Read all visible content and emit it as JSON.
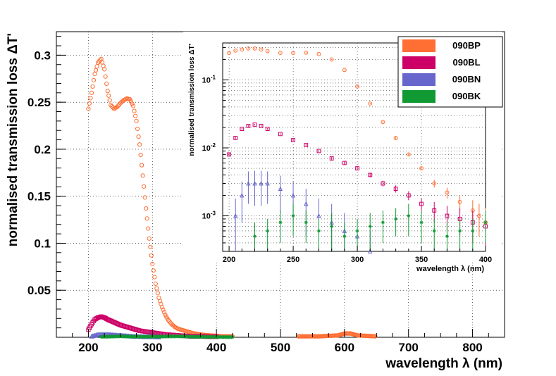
{
  "chart_data": {
    "type": "scatter",
    "main": {
      "xlabel": "wavelength λ (nm)",
      "ylabel": "normalised transmission loss ΔT'",
      "xlim": [
        150,
        850
      ],
      "ylim": [
        0,
        0.325
      ],
      "xticks": [
        200,
        300,
        400,
        500,
        600,
        700,
        800
      ],
      "xtick_labels": [
        "200",
        "300",
        "400",
        "500",
        "600",
        "700",
        "800"
      ],
      "yticks": [
        0.05,
        0.1,
        0.15,
        0.2,
        0.25,
        0.3
      ],
      "ytick_labels": [
        "0.05",
        "0.1",
        "0.15",
        "0.2",
        "0.25",
        "0.3"
      ],
      "grid": true,
      "series": [
        {
          "name": "090BP",
          "color": "#ff6e33",
          "marker": "circle",
          "segments": [
            {
              "x": [
                200,
                205,
                210,
                215,
                220,
                225,
                230,
                235,
                240,
                245,
                250,
                255,
                260,
                265,
                270,
                275,
                280,
                285,
                290,
                295,
                300,
                305,
                310,
                315,
                320,
                325,
                330,
                335,
                340,
                345,
                350,
                355,
                360,
                365,
                370,
                375,
                380,
                390,
                400,
                410,
                425
              ],
              "y": [
                0.243,
                0.26,
                0.28,
                0.292,
                0.296,
                0.285,
                0.262,
                0.247,
                0.243,
                0.245,
                0.249,
                0.252,
                0.254,
                0.253,
                0.246,
                0.23,
                0.205,
                0.172,
                0.137,
                0.105,
                0.078,
                0.057,
                0.042,
                0.032,
                0.024,
                0.018,
                0.014,
                0.011,
                0.009,
                0.008,
                0.007,
                0.006,
                0.005,
                0.004,
                0.0035,
                0.003,
                0.0025,
                0.002,
                0.0015,
                0.001,
                0.001
              ]
            },
            {
              "x": [
                528,
                545,
                560,
                575,
                590,
                600,
                610,
                620,
                635,
                648
              ],
              "y": [
                0.001,
                0.001,
                0.001,
                0.0015,
                0.002,
                0.004,
                0.004,
                0.002,
                0.0015,
                0.001
              ]
            }
          ]
        },
        {
          "name": "090BL",
          "color": "#cc0066",
          "marker": "square",
          "segments": [
            {
              "x": [
                200,
                205,
                210,
                215,
                220,
                225,
                230,
                240,
                250,
                260,
                270,
                280,
                290,
                300,
                310,
                320,
                330,
                340,
                350,
                360,
                370,
                380,
                400
              ],
              "y": [
                0.008,
                0.014,
                0.019,
                0.021,
                0.022,
                0.021,
                0.019,
                0.016,
                0.013,
                0.011,
                0.009,
                0.007,
                0.006,
                0.005,
                0.004,
                0.003,
                0.0025,
                0.002,
                0.0015,
                0.001,
                0.001,
                0.0008,
                0.0005
              ]
            }
          ]
        },
        {
          "name": "090BN",
          "color": "#6666cc",
          "marker": "triangle",
          "segments": [
            {
              "x": [
                205,
                210,
                215,
                220,
                225,
                230,
                240,
                250,
                260,
                270,
                280,
                290,
                300,
                310
              ],
              "y": [
                0.001,
                0.002,
                0.003,
                0.003,
                0.003,
                0.003,
                0.0025,
                0.002,
                0.0015,
                0.001,
                0.0008,
                0.0006,
                0.0005,
                0.0003
              ]
            }
          ]
        },
        {
          "name": "090BK",
          "color": "#119933",
          "marker": "star",
          "segments": [
            {
              "x": [
                220,
                230,
                240,
                250,
                260,
                270,
                280,
                290,
                300,
                310,
                320,
                330,
                340,
                350,
                360,
                370,
                380,
                395,
                410,
                425
              ],
              "y": [
                0.0005,
                0.0006,
                0.0008,
                0.001,
                0.0008,
                0.0006,
                0.0007,
                0.0005,
                0.0006,
                0.0007,
                0.0008,
                0.0009,
                0.001,
                0.0008,
                0.0006,
                0.0005,
                0.0004,
                0.0003,
                0.0002,
                0.0002
              ]
            }
          ]
        }
      ]
    },
    "inset": {
      "xlabel": "wavelength λ (nm)",
      "ylabel": "normalised transmission loss ΔT'",
      "xlim": [
        195,
        400
      ],
      "ylog": true,
      "ylim": [
        0.0003,
        0.35
      ],
      "xticks": [
        200,
        250,
        300,
        350,
        400
      ],
      "xtick_labels": [
        "200",
        "250",
        "300",
        "350",
        "400"
      ],
      "yticks": [
        0.001,
        0.01,
        0.1
      ],
      "ytick_labels": [
        [
          "10",
          "-3"
        ],
        [
          "10",
          "-2"
        ],
        [
          "10",
          "-1"
        ]
      ],
      "grid": true,
      "series": [
        {
          "name": "090BP",
          "x": [
            200,
            205,
            210,
            215,
            220,
            225,
            230,
            240,
            250,
            260,
            270,
            280,
            290,
            300,
            310,
            320,
            330,
            340,
            350,
            360,
            370,
            380,
            390,
            395,
            400
          ],
          "y": [
            0.25,
            0.27,
            0.28,
            0.29,
            0.29,
            0.28,
            0.265,
            0.25,
            0.25,
            0.252,
            0.24,
            0.2,
            0.14,
            0.08,
            0.045,
            0.024,
            0.014,
            0.008,
            0.005,
            0.003,
            0.0022,
            0.0016,
            0.0012,
            0.001,
            0.0008
          ],
          "err": [
            0.004,
            0.004,
            0.004,
            0.004,
            0.004,
            0.004,
            0.004,
            0.004,
            0.004,
            0.004,
            0.004,
            0.003,
            0.002,
            0.002,
            0.001,
            0.0008,
            0.0005,
            0.0003,
            0.0003,
            0.0004,
            0.0004,
            0.0004,
            0.0005,
            0.0005,
            0.0005
          ]
        },
        {
          "name": "090BL",
          "x": [
            200,
            205,
            210,
            215,
            220,
            225,
            230,
            240,
            250,
            260,
            270,
            280,
            290,
            300,
            310,
            320,
            330,
            340,
            350,
            360,
            370,
            380,
            390,
            400
          ],
          "y": [
            0.008,
            0.014,
            0.019,
            0.021,
            0.022,
            0.021,
            0.019,
            0.016,
            0.013,
            0.011,
            0.009,
            0.007,
            0.006,
            0.005,
            0.004,
            0.003,
            0.0025,
            0.002,
            0.0015,
            0.0012,
            0.001,
            0.0009,
            0.0008,
            0.0007
          ],
          "err": [
            0.0005,
            0.0005,
            0.0005,
            0.0005,
            0.0005,
            0.0005,
            0.0005,
            0.0004,
            0.0004,
            0.0003,
            0.0003,
            0.0003,
            0.0003,
            0.0003,
            0.0003,
            0.0003,
            0.0003,
            0.0003,
            0.0003,
            0.0004,
            0.0004,
            0.0004,
            0.0004,
            0.0004
          ]
        },
        {
          "name": "090BN",
          "x": [
            205,
            210,
            215,
            220,
            225,
            230,
            240,
            250,
            260,
            270,
            280,
            290,
            300,
            310
          ],
          "y": [
            0.001,
            0.002,
            0.003,
            0.003,
            0.003,
            0.003,
            0.0025,
            0.002,
            0.0015,
            0.001,
            0.0008,
            0.0006,
            0.0005,
            0.0003
          ],
          "err": [
            0.0008,
            0.0012,
            0.0015,
            0.0016,
            0.0016,
            0.0015,
            0.0014,
            0.0012,
            0.001,
            0.0008,
            0.0007,
            0.0005,
            0.0004,
            0.0003
          ]
        },
        {
          "name": "090BK",
          "x": [
            220,
            230,
            240,
            250,
            260,
            270,
            280,
            290,
            300,
            310,
            320,
            330,
            340,
            350,
            360,
            370,
            380,
            390,
            400
          ],
          "y": [
            0.0005,
            0.0006,
            0.0008,
            0.001,
            0.0008,
            0.0006,
            0.0007,
            0.0005,
            0.0006,
            0.0007,
            0.0008,
            0.0009,
            0.001,
            0.0008,
            0.0006,
            0.0005,
            0.0006,
            0.0006,
            0.0008
          ],
          "err": [
            0.0003,
            0.0003,
            0.0004,
            0.0005,
            0.0004,
            0.0003,
            0.0004,
            0.0003,
            0.0003,
            0.0004,
            0.0004,
            0.0004,
            0.0005,
            0.0004,
            0.0003,
            0.0003,
            0.0003,
            0.0003,
            0.0004
          ]
        }
      ]
    },
    "legend": {
      "position": "top-right",
      "entries": [
        {
          "label": "090BP",
          "color": "#ff6e33"
        },
        {
          "label": "090BL",
          "color": "#cc0066"
        },
        {
          "label": "090BN",
          "color": "#6666cc"
        },
        {
          "label": "090BK",
          "color": "#119933"
        }
      ]
    }
  }
}
